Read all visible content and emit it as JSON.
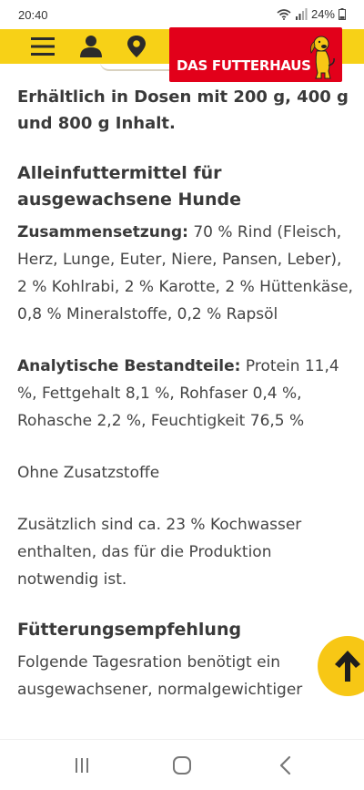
{
  "status_bar": {
    "time": "20:40",
    "battery": "24%",
    "icons": [
      "wifi-icon",
      "signal-icon",
      "battery-icon"
    ]
  },
  "header": {
    "icons": [
      "menu-icon",
      "user-icon",
      "location-icon"
    ],
    "logo_text": "DAS FUTTERHAUS",
    "brand_colors": {
      "yellow": "#f7d117",
      "red": "#e2001a"
    }
  },
  "content": {
    "availability": "Erhältlich in Dosen mit 200 g, 400 g und 800 g Inhalt.",
    "heading_feed": "Alleinfuttermittel für ausgewachsene Hunde",
    "composition_label": "Zusammensetzung:",
    "composition_text": " 70 % Rind (Fleisch, Herz, Lunge, Euter, Niere, Pansen, Leber), 2 % Kohlrabi, 2 % Karotte, 2 % Hüttenkäse, 0,8 % Mineralstoffe, 0,2 % Rapsöl",
    "analytic_label": "Analytische Bestandteile:",
    "analytic_text": " Protein 11,4 %, Fettgehalt 8,1 %, Rohfaser 0,4 %, Rohasche 2,2 %, Feuchtigkeit 76,5 %",
    "additives": "Ohne Zusatzstoffe",
    "cooking_water": "Zusätzlich sind ca. 23 % Kochwasser enthalten, das für die Produktion notwendig ist.",
    "heading_feeding": "Fütterungsempfehlung",
    "feeding_text": "Folgende Tagesration benötigt ein ausgewachsener, normalgewichtiger"
  },
  "scroll_top": {
    "icon": "arrow-up-icon"
  },
  "nav_bar": {
    "icons": [
      "recent-apps-icon",
      "home-icon",
      "back-icon"
    ]
  }
}
